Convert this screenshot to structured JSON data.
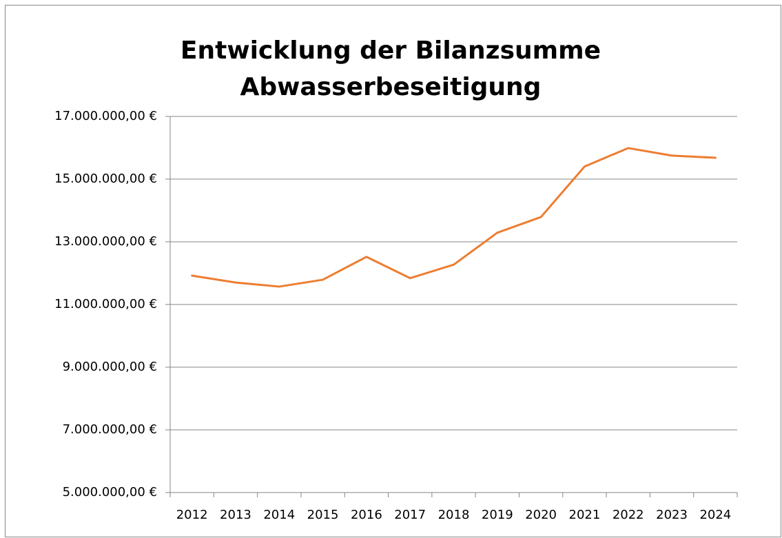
{
  "chart_data": {
    "type": "line",
    "title": [
      "Entwicklung der Bilanzsumme",
      "Abwasserbeseitigung"
    ],
    "categories": [
      "2012",
      "2013",
      "2014",
      "2015",
      "2016",
      "2017",
      "2018",
      "2019",
      "2020",
      "2021",
      "2022",
      "2023",
      "2024"
    ],
    "series": [
      {
        "color": "#ed7d31",
        "values": [
          11920000,
          11700000,
          11570000,
          11790000,
          12520000,
          11840000,
          12270000,
          13290000,
          13790000,
          15400000,
          15990000,
          15750000,
          15680000
        ]
      }
    ],
    "ylim": [
      5000000,
      17000000
    ],
    "yticks": [
      {
        "value": 5000000,
        "label": "5.000.000,00 €"
      },
      {
        "value": 7000000,
        "label": "7.000.000,00 €"
      },
      {
        "value": 9000000,
        "label": "9.000.000,00 €"
      },
      {
        "value": 11000000,
        "label": "11.000.000,00 €"
      },
      {
        "value": 13000000,
        "label": "13.000.000,00 €"
      },
      {
        "value": 15000000,
        "label": "15.000.000,00 €"
      },
      {
        "value": 17000000,
        "label": "17.000.000,00 €"
      }
    ],
    "grid": true
  }
}
